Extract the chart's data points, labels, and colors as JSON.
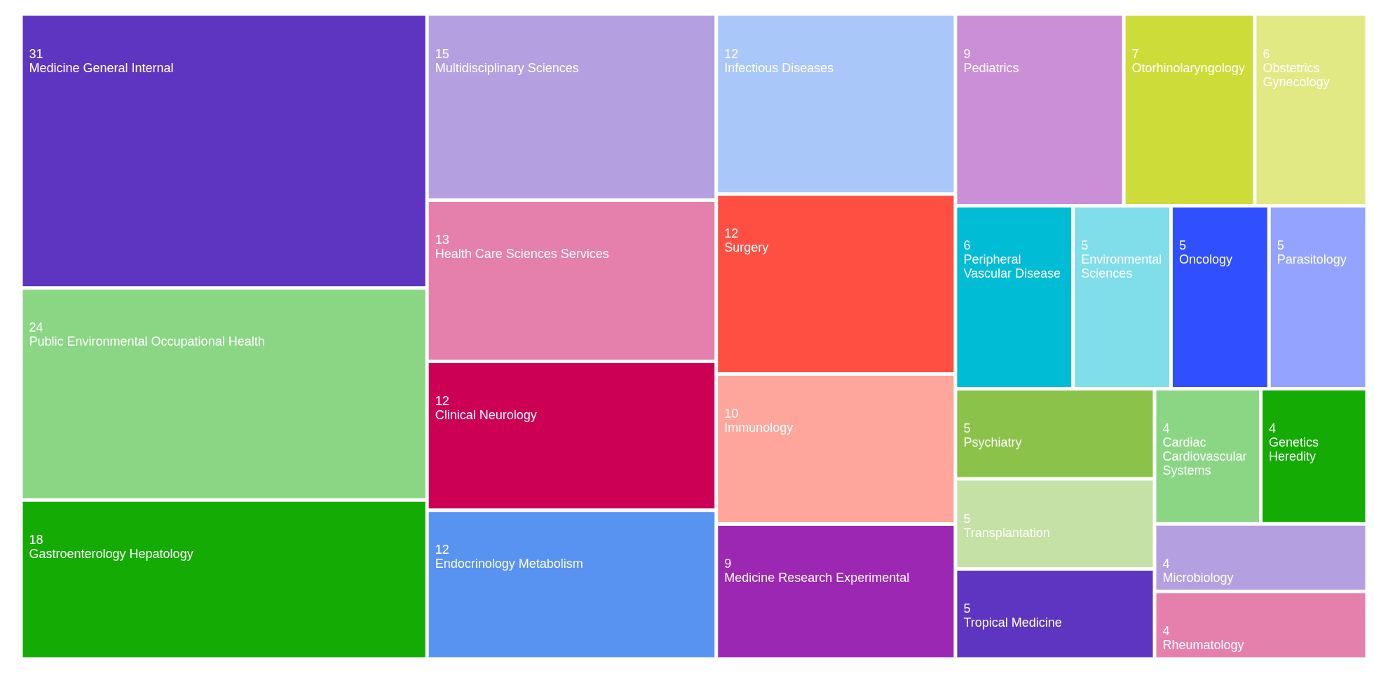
{
  "chart_data": {
    "type": "other",
    "data_labels": true,
    "categories": [
      "Medicine General Internal",
      "Public Environmental Occupational Health",
      "Gastroenterology Hepatology",
      "Multidisciplinary Sciences",
      "Health Care Sciences Services",
      "Clinical Neurology",
      "Endocrinology Metabolism",
      "Infectious Diseases",
      "Surgery",
      "Immunology",
      "Medicine Research Experimental",
      "Pediatrics",
      "Otorhinolaryngology",
      "Obstetrics Gynecology",
      "Peripheral Vascular Disease",
      "Environmental Sciences",
      "Oncology",
      "Parasitology",
      "Psychiatry",
      "Transplantation",
      "Tropical Medicine",
      "Cardiac Cardiovascular Systems",
      "Genetics Heredity",
      "Microbiology",
      "Rheumatology"
    ],
    "values": [
      31,
      24,
      18,
      15,
      13,
      12,
      12,
      12,
      12,
      10,
      9,
      9,
      7,
      6,
      6,
      5,
      5,
      5,
      5,
      5,
      5,
      4,
      4,
      4,
      4
    ],
    "colors": [
      "#5e35c1",
      "#8bd685",
      "#14ab04",
      "#b49fe0",
      "#e57fab",
      "#cc0055",
      "#5893f2",
      "#a9c7f8",
      "#ff4f42",
      "#ffa69c",
      "#9c27b3",
      "#ca8fd6",
      "#cddc39",
      "#e1e985",
      "#00bcd4",
      "#7fdeea",
      "#304ffe",
      "#94a3ff",
      "#8bc34a",
      "#c5e1a5",
      "#5e35c1",
      "#8bd685",
      "#14ab04",
      "#b49fe0",
      "#e57fab"
    ]
  }
}
